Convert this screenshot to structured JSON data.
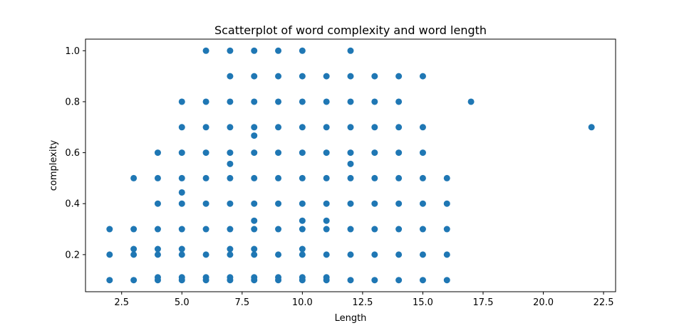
{
  "chart_data": {
    "type": "scatter",
    "title": "Scatterplot of word complexity and word length",
    "xlabel": "Length",
    "ylabel": "complexity",
    "xlim": [
      1.0,
      23.0
    ],
    "ylim": [
      0.0545,
      1.0455
    ],
    "xticks": [
      2.5,
      5.0,
      7.5,
      10.0,
      12.5,
      15.0,
      17.5,
      20.0,
      22.5
    ],
    "xtick_labels": [
      "2.5",
      "5.0",
      "7.5",
      "10.0",
      "12.5",
      "15.0",
      "17.5",
      "20.0",
      "22.5"
    ],
    "yticks": [
      0.2,
      0.4,
      0.6,
      0.8,
      1.0
    ],
    "ytick_labels": [
      "0.2",
      "0.4",
      "0.6",
      "0.8",
      "1.0"
    ],
    "grid": false,
    "legend": "none",
    "marker_color": "#1f77b4",
    "points": [
      [
        2,
        0.1
      ],
      [
        2,
        0.2
      ],
      [
        2,
        0.3
      ],
      [
        3,
        0.1
      ],
      [
        3,
        0.2
      ],
      [
        3,
        0.222
      ],
      [
        3,
        0.3
      ],
      [
        3,
        0.5
      ],
      [
        4,
        0.1
      ],
      [
        4,
        0.111
      ],
      [
        4,
        0.2
      ],
      [
        4,
        0.222
      ],
      [
        4,
        0.3
      ],
      [
        4,
        0.4
      ],
      [
        4,
        0.5
      ],
      [
        4,
        0.6
      ],
      [
        5,
        0.1
      ],
      [
        5,
        0.111
      ],
      [
        5,
        0.2
      ],
      [
        5,
        0.222
      ],
      [
        5,
        0.3
      ],
      [
        5,
        0.4
      ],
      [
        5,
        0.444
      ],
      [
        5,
        0.5
      ],
      [
        5,
        0.6
      ],
      [
        5,
        0.7
      ],
      [
        5,
        0.8
      ],
      [
        6,
        0.1
      ],
      [
        6,
        0.111
      ],
      [
        6,
        0.2
      ],
      [
        6,
        0.3
      ],
      [
        6,
        0.4
      ],
      [
        6,
        0.5
      ],
      [
        6,
        0.6
      ],
      [
        6,
        0.7
      ],
      [
        6,
        0.8
      ],
      [
        6,
        1.0
      ],
      [
        7,
        0.1
      ],
      [
        7,
        0.111
      ],
      [
        7,
        0.2
      ],
      [
        7,
        0.222
      ],
      [
        7,
        0.3
      ],
      [
        7,
        0.4
      ],
      [
        7,
        0.5
      ],
      [
        7,
        0.556
      ],
      [
        7,
        0.6
      ],
      [
        7,
        0.7
      ],
      [
        7,
        0.8
      ],
      [
        7,
        0.9
      ],
      [
        7,
        1.0
      ],
      [
        8,
        0.1
      ],
      [
        8,
        0.111
      ],
      [
        8,
        0.2
      ],
      [
        8,
        0.222
      ],
      [
        8,
        0.3
      ],
      [
        8,
        0.333
      ],
      [
        8,
        0.4
      ],
      [
        8,
        0.5
      ],
      [
        8,
        0.6
      ],
      [
        8,
        0.667
      ],
      [
        8,
        0.7
      ],
      [
        8,
        0.8
      ],
      [
        8,
        0.9
      ],
      [
        8,
        1.0
      ],
      [
        9,
        0.1
      ],
      [
        9,
        0.111
      ],
      [
        9,
        0.2
      ],
      [
        9,
        0.3
      ],
      [
        9,
        0.4
      ],
      [
        9,
        0.5
      ],
      [
        9,
        0.6
      ],
      [
        9,
        0.7
      ],
      [
        9,
        0.8
      ],
      [
        9,
        0.9
      ],
      [
        9,
        1.0
      ],
      [
        10,
        0.1
      ],
      [
        10,
        0.111
      ],
      [
        10,
        0.2
      ],
      [
        10,
        0.222
      ],
      [
        10,
        0.3
      ],
      [
        10,
        0.333
      ],
      [
        10,
        0.4
      ],
      [
        10,
        0.5
      ],
      [
        10,
        0.6
      ],
      [
        10,
        0.7
      ],
      [
        10,
        0.8
      ],
      [
        10,
        0.9
      ],
      [
        10,
        1.0
      ],
      [
        11,
        0.1
      ],
      [
        11,
        0.111
      ],
      [
        11,
        0.2
      ],
      [
        11,
        0.3
      ],
      [
        11,
        0.333
      ],
      [
        11,
        0.4
      ],
      [
        11,
        0.5
      ],
      [
        11,
        0.6
      ],
      [
        11,
        0.7
      ],
      [
        11,
        0.8
      ],
      [
        11,
        0.9
      ],
      [
        12,
        0.1
      ],
      [
        12,
        0.2
      ],
      [
        12,
        0.3
      ],
      [
        12,
        0.4
      ],
      [
        12,
        0.5
      ],
      [
        12,
        0.556
      ],
      [
        12,
        0.6
      ],
      [
        12,
        0.7
      ],
      [
        12,
        0.8
      ],
      [
        12,
        0.9
      ],
      [
        12,
        1.0
      ],
      [
        13,
        0.1
      ],
      [
        13,
        0.2
      ],
      [
        13,
        0.3
      ],
      [
        13,
        0.4
      ],
      [
        13,
        0.5
      ],
      [
        13,
        0.6
      ],
      [
        13,
        0.7
      ],
      [
        13,
        0.8
      ],
      [
        13,
        0.9
      ],
      [
        14,
        0.1
      ],
      [
        14,
        0.2
      ],
      [
        14,
        0.3
      ],
      [
        14,
        0.4
      ],
      [
        14,
        0.5
      ],
      [
        14,
        0.6
      ],
      [
        14,
        0.7
      ],
      [
        14,
        0.8
      ],
      [
        14,
        0.9
      ],
      [
        15,
        0.1
      ],
      [
        15,
        0.2
      ],
      [
        15,
        0.3
      ],
      [
        15,
        0.4
      ],
      [
        15,
        0.5
      ],
      [
        15,
        0.6
      ],
      [
        15,
        0.7
      ],
      [
        15,
        0.9
      ],
      [
        16,
        0.1
      ],
      [
        16,
        0.2
      ],
      [
        16,
        0.3
      ],
      [
        16,
        0.4
      ],
      [
        16,
        0.5
      ],
      [
        17,
        0.8
      ],
      [
        22,
        0.7
      ]
    ]
  }
}
